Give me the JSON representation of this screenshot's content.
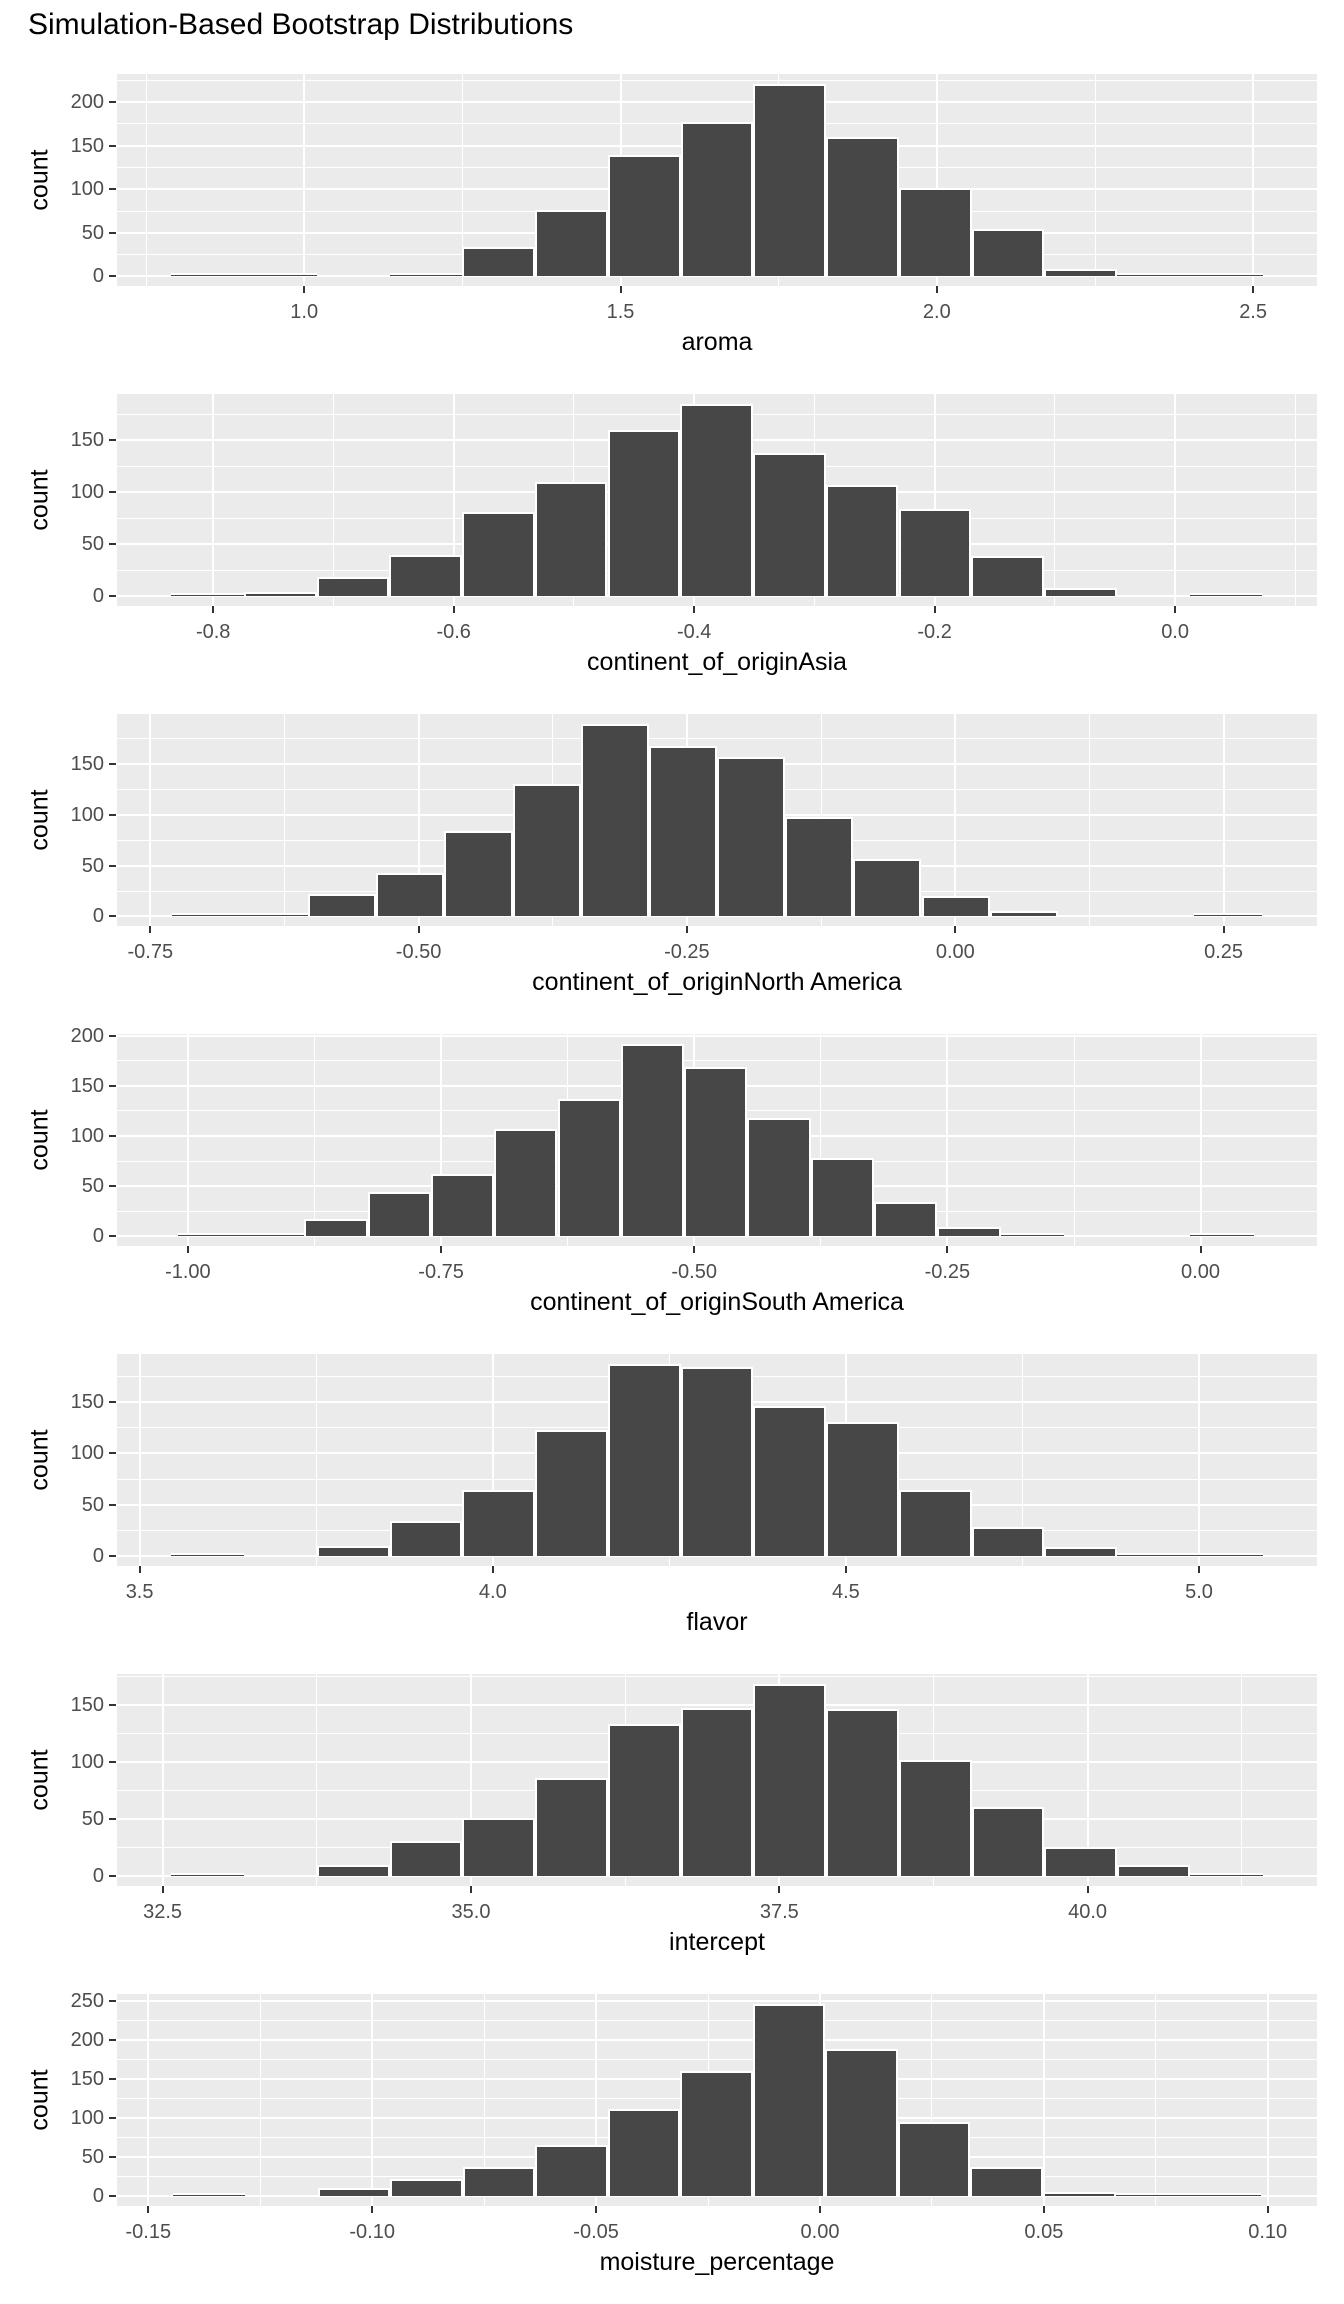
{
  "title": "Simulation-Based Bootstrap Distributions",
  "colors": {
    "panel_background": "#EBEBEB",
    "gridline": "#FFFFFF",
    "bar_fill": "#474747",
    "bar_stroke": "#FFFFFF",
    "axis_text": "#4D4D4D",
    "axis_title": "#000000",
    "tick_mark": "#333333",
    "title_text": "#000000"
  },
  "chart_data": [
    {
      "type": "bar",
      "subtype": "histogram",
      "grid": "on",
      "legend": "none",
      "xlabel": "aroma",
      "ylabel": "count",
      "xlim": [
        0.704,
        2.601
      ],
      "ylim": [
        -11.05,
        232.05
      ],
      "xticks": {
        "values": [
          1.0,
          1.5,
          2.0,
          2.5
        ],
        "labels": [
          "1.0",
          "1.5",
          "2.0",
          "2.5"
        ]
      },
      "yticks": [
        0,
        50,
        100,
        150,
        200
      ],
      "bin_start": 0.79,
      "bin_width": 0.115,
      "counts": [
        1,
        1,
        0,
        4,
        34,
        76,
        139,
        177,
        221,
        160,
        101,
        54,
        9,
        3,
        1
      ]
    },
    {
      "type": "bar",
      "subtype": "histogram",
      "grid": "on",
      "legend": "none",
      "xlabel": "continent_of_originAsia",
      "ylabel": "count",
      "xlim": [
        -0.88,
        0.118
      ],
      "ylim": [
        -9.25,
        194.25
      ],
      "xticks": {
        "values": [
          -0.8,
          -0.6,
          -0.4,
          -0.2,
          0.0
        ],
        "labels": [
          "-0.8",
          "-0.6",
          "-0.4",
          "-0.2",
          "0.0"
        ]
      },
      "yticks": [
        0,
        50,
        100,
        150
      ],
      "bin_start": -0.835,
      "bin_width": 0.0605,
      "counts": [
        2,
        4,
        19,
        40,
        81,
        110,
        160,
        185,
        138,
        107,
        84,
        39,
        8,
        0,
        2
      ]
    },
    {
      "type": "bar",
      "subtype": "histogram",
      "grid": "on",
      "legend": "none",
      "xlabel": "continent_of_originNorth America",
      "ylabel": "count",
      "xlim": [
        -0.781,
        0.337
      ],
      "ylim": [
        -9.5,
        199.5
      ],
      "xticks": {
        "values": [
          -0.75,
          -0.5,
          -0.25,
          0.0,
          0.25
        ],
        "labels": [
          "-0.75",
          "-0.50",
          "-0.25",
          "0.00",
          "0.25"
        ]
      },
      "yticks": [
        0,
        50,
        100,
        150
      ],
      "bin_start": -0.73,
      "bin_width": 0.0635,
      "counts": [
        1,
        3,
        22,
        43,
        84,
        131,
        190,
        168,
        157,
        98,
        57,
        20,
        5,
        0,
        0,
        1
      ]
    },
    {
      "type": "bar",
      "subtype": "histogram",
      "grid": "on",
      "legend": "none",
      "xlabel": "continent_of_originSouth America",
      "ylabel": "count",
      "xlim": [
        -1.07,
        0.115
      ],
      "ylim": [
        -9.6,
        201.6
      ],
      "xticks": {
        "values": [
          -1.0,
          -0.75,
          -0.5,
          -0.25,
          0.0
        ],
        "labels": [
          "-1.00",
          "-0.75",
          "-0.50",
          "-0.25",
          "0.00"
        ]
      },
      "yticks": [
        0,
        50,
        100,
        150,
        200
      ],
      "bin_start": -1.01,
      "bin_width": 0.0625,
      "counts": [
        3,
        2,
        17,
        44,
        62,
        107,
        137,
        192,
        169,
        118,
        78,
        34,
        9,
        2,
        0,
        0,
        1
      ]
    },
    {
      "type": "bar",
      "subtype": "histogram",
      "grid": "on",
      "legend": "none",
      "xlabel": "flavor",
      "ylabel": "count",
      "xlim": [
        3.468,
        5.167
      ],
      "ylim": [
        -9.35,
        196.35
      ],
      "xticks": {
        "values": [
          3.5,
          4.0,
          4.5,
          5.0
        ],
        "labels": [
          "3.5",
          "4.0",
          "4.5",
          "5.0"
        ]
      },
      "yticks": [
        0,
        50,
        100,
        150
      ],
      "bin_start": 3.545,
      "bin_width": 0.103,
      "counts": [
        1,
        0,
        10,
        34,
        64,
        123,
        187,
        184,
        146,
        130,
        64,
        29,
        9,
        3,
        1
      ]
    },
    {
      "type": "bar",
      "subtype": "histogram",
      "grid": "on",
      "legend": "none",
      "xlabel": "intercept",
      "ylabel": "count",
      "xlim": [
        32.13,
        41.86
      ],
      "ylim": [
        -8.45,
        177.45
      ],
      "xticks": {
        "values": [
          32.5,
          35.0,
          37.5,
          40.0
        ],
        "labels": [
          "32.5",
          "35.0",
          "37.5",
          "40.0"
        ]
      },
      "yticks": [
        0,
        50,
        100,
        150
      ],
      "bin_start": 32.57,
      "bin_width": 0.59,
      "counts": [
        2,
        0,
        10,
        31,
        51,
        86,
        134,
        148,
        169,
        147,
        102,
        61,
        26,
        10,
        3
      ]
    },
    {
      "type": "bar",
      "subtype": "histogram",
      "grid": "on",
      "legend": "none",
      "xlabel": "moisture_percentage",
      "ylabel": "count",
      "xlim": [
        -0.157,
        0.111
      ],
      "ylim": [
        -12.3,
        258.3
      ],
      "xticks": {
        "values": [
          -0.15,
          -0.1,
          -0.05,
          0.0,
          0.05,
          0.1
        ],
        "labels": [
          "-0.15",
          "-0.10",
          "-0.05",
          "0.00",
          "0.05",
          "0.10"
        ]
      },
      "yticks": [
        0,
        50,
        100,
        150,
        200,
        250
      ],
      "bin_start": -0.1446,
      "bin_width": 0.0162,
      "counts": [
        1,
        0,
        11,
        22,
        38,
        65,
        111,
        160,
        246,
        188,
        95,
        37,
        6,
        2,
        1
      ]
    }
  ]
}
